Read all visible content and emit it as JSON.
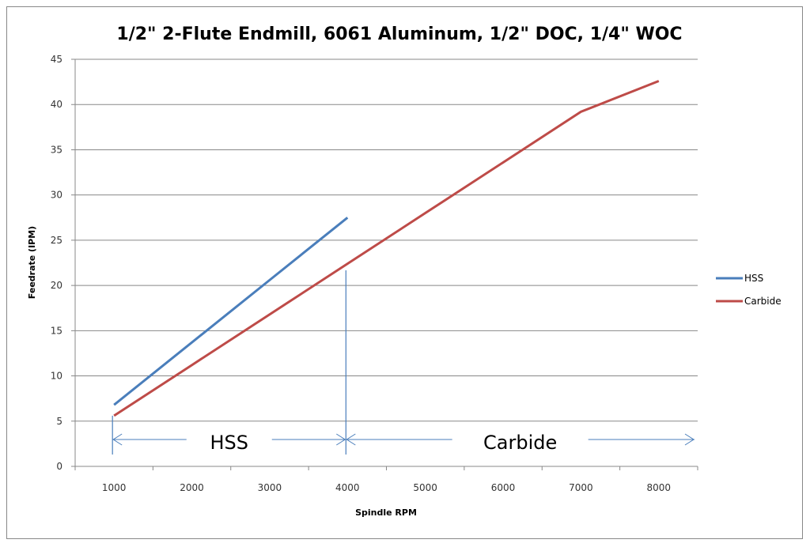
{
  "chart_data": {
    "type": "line",
    "title": "1/2\" 2-Flute Endmill, 6061 Aluminum, 1/2\" DOC, 1/4\" WOC",
    "xlabel": "Spindle RPM",
    "ylabel": "Feedrate (IPM)",
    "categories": [
      "1000",
      "2000",
      "3000",
      "4000",
      "5000",
      "6000",
      "7000",
      "8000"
    ],
    "ylim": [
      0,
      45
    ],
    "yticks": [
      0,
      5,
      10,
      15,
      20,
      25,
      30,
      35,
      40,
      45
    ],
    "grid": "horizontal",
    "legend": "right",
    "series": [
      {
        "name": "HSS",
        "color": "#4a7ebb",
        "values": [
          6.8,
          13.7,
          20.6,
          27.5,
          null,
          null,
          null,
          null
        ]
      },
      {
        "name": "Carbide",
        "color": "#be4b48",
        "values": [
          5.6,
          11.2,
          16.8,
          22.4,
          28.0,
          33.6,
          39.2,
          42.6
        ]
      }
    ],
    "annotations": [
      {
        "text": "HSS",
        "from": "1000",
        "to": "4000"
      },
      {
        "text": "Carbide",
        "from": "4000",
        "to": "8000"
      }
    ],
    "annotation_color": "#4a7ebb"
  }
}
